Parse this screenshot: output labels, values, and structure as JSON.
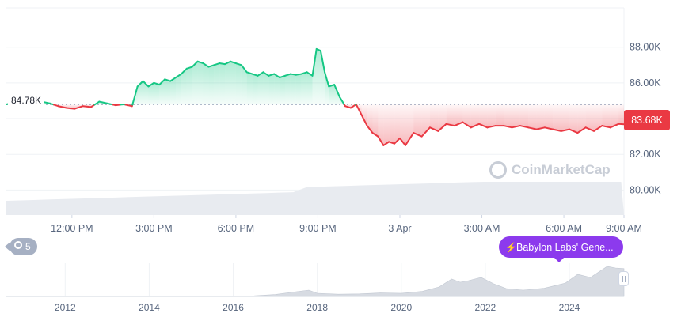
{
  "chart_data": {
    "type": "area",
    "title": "",
    "xlabel": "",
    "ylabel": "",
    "y_ticks": [
      "88.00K",
      "86.00K",
      "84.00K",
      "82.00K",
      "80.00K"
    ],
    "x_ticks": [
      "12:00 PM",
      "3:00 PM",
      "6:00 PM",
      "9:00 PM",
      "3 Apr",
      "3:00 AM",
      "6:00 AM",
      "9:00 AM"
    ],
    "reference_label": "84.78K",
    "reference_value": 84.78,
    "current_label": "83.68K",
    "current_value": 83.68,
    "unit": "K USD",
    "ylim": [
      78.6,
      90.2
    ],
    "x_hours_range": [
      9.6,
      32.2
    ],
    "x": [
      9.6,
      9.9,
      10.3,
      10.6,
      10.9,
      11.2,
      11.5,
      11.8,
      12.1,
      12.4,
      12.7,
      13.0,
      13.3,
      13.6,
      13.9,
      14.2,
      14.4,
      14.6,
      14.8,
      15.0,
      15.2,
      15.4,
      15.6,
      15.8,
      16.0,
      16.2,
      16.4,
      16.6,
      16.8,
      17.0,
      17.2,
      17.4,
      17.6,
      17.8,
      18.0,
      18.2,
      18.4,
      18.6,
      18.8,
      19.0,
      19.2,
      19.4,
      19.6,
      19.8,
      20.0,
      20.2,
      20.4,
      20.6,
      20.8,
      20.95,
      21.1,
      21.25,
      21.4,
      21.6,
      21.8,
      22.0,
      22.2,
      22.4,
      22.6,
      22.8,
      23.0,
      23.2,
      23.4,
      23.6,
      23.8,
      24.0,
      24.2,
      24.5,
      24.8,
      25.1,
      25.4,
      25.7,
      26.0,
      26.3,
      26.6,
      26.9,
      27.2,
      27.5,
      27.8,
      28.1,
      28.4,
      28.7,
      29.0,
      29.3,
      29.6,
      29.9,
      30.2,
      30.5,
      30.8,
      31.1,
      31.4,
      31.7,
      32.0,
      32.2
    ],
    "y": [
      84.8,
      84.9,
      84.85,
      84.9,
      84.95,
      84.85,
      84.7,
      84.6,
      84.55,
      84.7,
      84.65,
      84.95,
      84.85,
      84.75,
      84.8,
      84.7,
      85.8,
      86.1,
      85.8,
      86.0,
      85.9,
      86.2,
      86.1,
      86.3,
      86.5,
      86.8,
      86.9,
      87.2,
      87.1,
      86.9,
      87.0,
      87.1,
      87.05,
      87.2,
      87.1,
      87.0,
      86.6,
      86.5,
      86.4,
      86.6,
      86.4,
      86.5,
      86.3,
      86.4,
      86.5,
      86.45,
      86.5,
      86.6,
      86.4,
      87.9,
      87.8,
      86.6,
      85.8,
      85.9,
      85.2,
      84.7,
      84.6,
      84.8,
      84.2,
      83.6,
      83.2,
      83.0,
      82.5,
      82.7,
      82.6,
      82.9,
      82.5,
      83.2,
      83.0,
      83.5,
      83.3,
      83.7,
      83.6,
      83.8,
      83.5,
      83.7,
      83.5,
      83.6,
      83.6,
      83.5,
      83.6,
      83.5,
      83.4,
      83.5,
      83.4,
      83.3,
      83.4,
      83.2,
      83.5,
      83.3,
      83.6,
      83.5,
      83.7,
      83.68
    ],
    "volume_note": "",
    "navigator": {
      "x_ticks": [
        "2012",
        "2014",
        "2016",
        "2018",
        "2020",
        "2022",
        "2024"
      ],
      "years_range": [
        2010.6,
        2025.3
      ],
      "years": [
        2010.6,
        2013.0,
        2015.0,
        2016.5,
        2017.0,
        2017.5,
        2017.8,
        2018.0,
        2018.5,
        2019.0,
        2019.5,
        2020.0,
        2020.5,
        2020.9,
        2021.2,
        2021.4,
        2021.6,
        2021.9,
        2022.2,
        2022.5,
        2022.9,
        2023.4,
        2023.9,
        2024.2,
        2024.5,
        2024.9,
        2025.1,
        2025.3
      ],
      "values": [
        0,
        0,
        0.01,
        0.02,
        0.06,
        0.15,
        0.2,
        0.1,
        0.07,
        0.08,
        0.11,
        0.1,
        0.16,
        0.3,
        0.55,
        0.45,
        0.5,
        0.6,
        0.4,
        0.25,
        0.2,
        0.26,
        0.42,
        0.7,
        0.6,
        0.95,
        0.9,
        0.88
      ]
    }
  },
  "ui": {
    "watermark": "CoinMarketCap",
    "history_count": "5",
    "news_chip": "Babylon Labs' Gene...",
    "colors": {
      "up": "#16c784",
      "down": "#ea3943",
      "up_fill": "#16c784",
      "down_fill": "#ea3943",
      "grid": "#eff2f5",
      "volume": "#e8ebf0",
      "navigator": "#d7dbe2",
      "accent_chip": "#8c3aed",
      "history_chip": "#a6b0c3"
    }
  }
}
